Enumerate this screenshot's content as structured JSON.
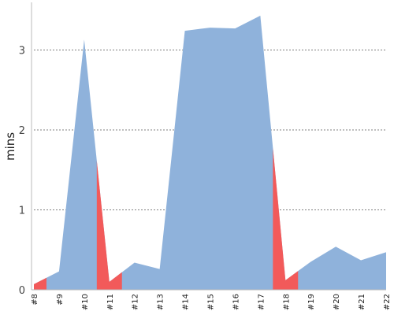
{
  "chart_data": {
    "type": "area",
    "ylabel": "mins",
    "xlabel": "",
    "ylim": [
      0,
      3.5
    ],
    "yticks": [
      0,
      1,
      2,
      3
    ],
    "grid": true,
    "categories": [
      "#8",
      "#9",
      "#10",
      "#11",
      "#12",
      "#13",
      "#14",
      "#15",
      "#16",
      "#17",
      "#18",
      "#19",
      "#20",
      "#21",
      "#22"
    ],
    "values": [
      0.07,
      0.23,
      3.13,
      0.1,
      0.34,
      0.26,
      3.24,
      3.28,
      3.27,
      3.43,
      0.12,
      0.35,
      0.54,
      0.37,
      0.47
    ],
    "colors": {
      "area": "#8fb2db",
      "highlight": "#f25a5a"
    },
    "highlighted_spans": [
      {
        "from": "#8",
        "to": "#8.5"
      },
      {
        "from": "#10.5",
        "to": "#11.5"
      },
      {
        "from": "#17.5",
        "to": "#18.5"
      }
    ]
  }
}
